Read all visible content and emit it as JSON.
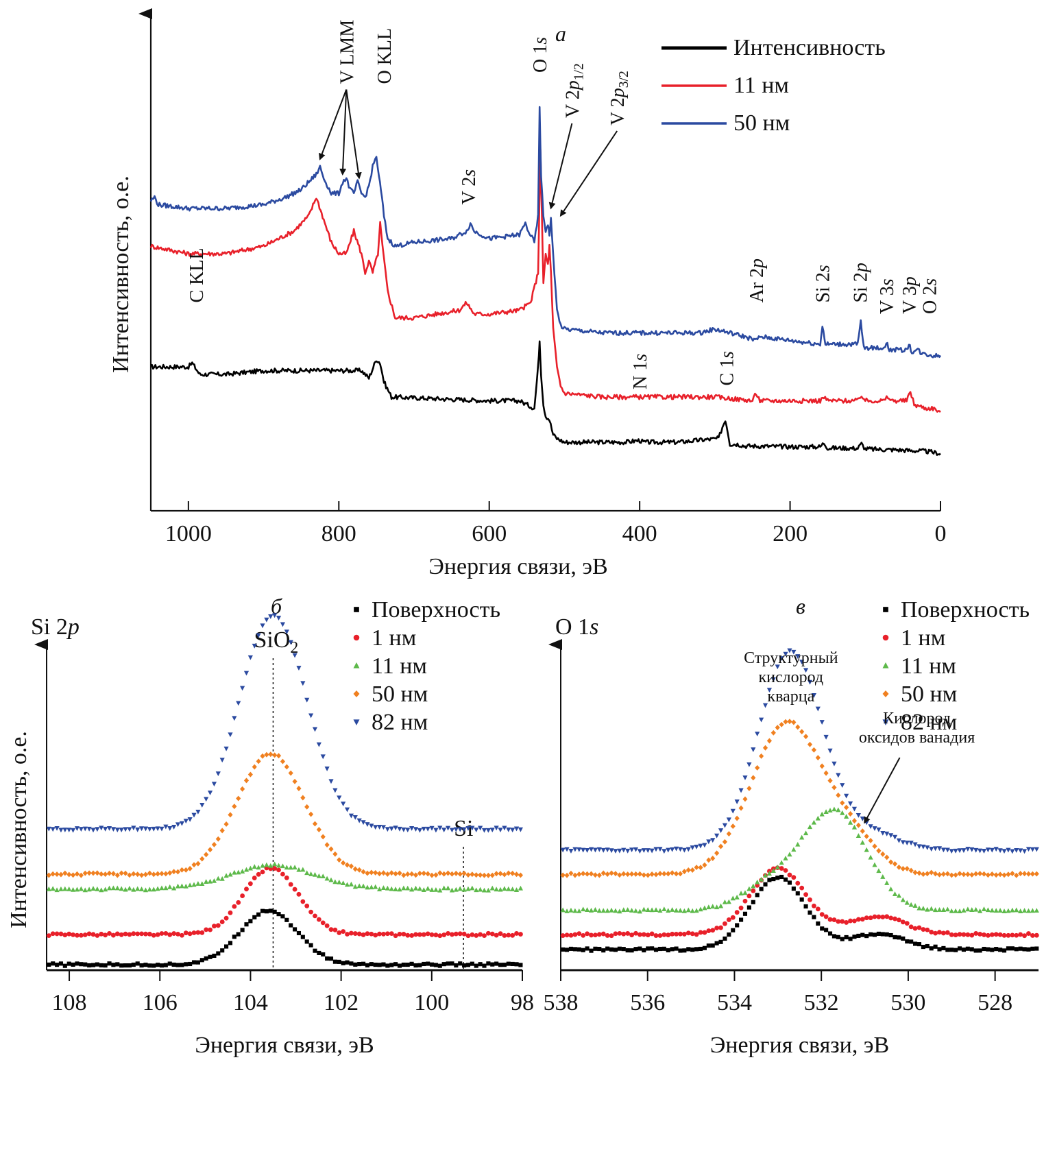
{
  "chart_data": [
    {
      "id": "a",
      "panel_letter": "а",
      "type": "line",
      "title": "",
      "xlabel": "Энергия связи, эВ",
      "ylabel": "Интенсивность, о.е.",
      "xlim": [
        1050,
        0
      ],
      "x_reversed": true,
      "xticks": [
        1000,
        800,
        600,
        400,
        200,
        0
      ],
      "yticks": [],
      "grid": false,
      "legend_position": "top-right",
      "series": [
        {
          "name": "Интенсивность",
          "color": "#000000",
          "offset": 0.0,
          "x": [
            1050,
            1000,
            995,
            985,
            950,
            900,
            860,
            770,
            760,
            750,
            745,
            740,
            730,
            600,
            560,
            540,
            535,
            533,
            531,
            528,
            525,
            520,
            515,
            510,
            500,
            420,
            400,
            395,
            350,
            295,
            290,
            286,
            283,
            280,
            270,
            260,
            250,
            200,
            160,
            155,
            150,
            110,
            105,
            100,
            60,
            40,
            20,
            0
          ],
          "y": [
            0.3,
            0.3,
            0.31,
            0.28,
            0.28,
            0.29,
            0.29,
            0.29,
            0.27,
            0.32,
            0.31,
            0.26,
            0.22,
            0.21,
            0.21,
            0.19,
            0.3,
            0.37,
            0.28,
            0.2,
            0.17,
            0.16,
            0.12,
            0.11,
            0.1,
            0.1,
            0.105,
            0.1,
            0.1,
            0.11,
            0.14,
            0.16,
            0.13,
            0.095,
            0.095,
            0.09,
            0.09,
            0.088,
            0.088,
            0.098,
            0.085,
            0.084,
            0.096,
            0.082,
            0.08,
            0.078,
            0.076,
            0.07
          ]
        },
        {
          "name": "11 нм",
          "color": "#e8202a",
          "offset": 0.0,
          "x": [
            1050,
            1000,
            950,
            900,
            860,
            840,
            830,
            820,
            810,
            800,
            790,
            780,
            770,
            765,
            760,
            755,
            748,
            745,
            742,
            735,
            725,
            700,
            640,
            630,
            620,
            600,
            560,
            545,
            535,
            532,
            530,
            528,
            525,
            522,
            520,
            518,
            515,
            510,
            505,
            500,
            450,
            300,
            250,
            245,
            240,
            160,
            155,
            150,
            110,
            105,
            100,
            75,
            70,
            65,
            45,
            40,
            35,
            20,
            10,
            0
          ],
          "y": [
            0.62,
            0.6,
            0.6,
            0.62,
            0.66,
            0.7,
            0.75,
            0.69,
            0.63,
            0.6,
            0.6,
            0.66,
            0.6,
            0.55,
            0.58,
            0.55,
            0.6,
            0.68,
            0.62,
            0.5,
            0.43,
            0.43,
            0.45,
            0.47,
            0.44,
            0.44,
            0.45,
            0.47,
            0.55,
            0.88,
            0.7,
            0.52,
            0.6,
            0.57,
            0.62,
            0.55,
            0.4,
            0.3,
            0.25,
            0.23,
            0.22,
            0.22,
            0.21,
            0.23,
            0.21,
            0.21,
            0.22,
            0.21,
            0.21,
            0.225,
            0.21,
            0.21,
            0.22,
            0.21,
            0.21,
            0.235,
            0.2,
            0.19,
            0.19,
            0.18
          ]
        },
        {
          "name": "50 нм",
          "color": "#2b4aa0",
          "offset": 0.0,
          "x": [
            1050,
            1045,
            1040,
            1000,
            950,
            900,
            870,
            850,
            840,
            830,
            825,
            820,
            810,
            800,
            795,
            790,
            785,
            780,
            775,
            770,
            765,
            760,
            755,
            750,
            748,
            744,
            740,
            735,
            725,
            700,
            650,
            630,
            625,
            620,
            600,
            560,
            552,
            548,
            540,
            535,
            533,
            531,
            528,
            525,
            522,
            520,
            518,
            515,
            510,
            505,
            500,
            450,
            320,
            300,
            260,
            245,
            240,
            200,
            160,
            157,
            153,
            110,
            106,
            102,
            75,
            72,
            68,
            45,
            42,
            38,
            30,
            25,
            10,
            0
          ],
          "y": [
            0.74,
            0.75,
            0.73,
            0.72,
            0.72,
            0.73,
            0.75,
            0.77,
            0.79,
            0.81,
            0.83,
            0.8,
            0.76,
            0.76,
            0.79,
            0.8,
            0.77,
            0.76,
            0.79,
            0.76,
            0.75,
            0.78,
            0.83,
            0.86,
            0.82,
            0.77,
            0.7,
            0.64,
            0.62,
            0.63,
            0.64,
            0.66,
            0.68,
            0.66,
            0.64,
            0.65,
            0.68,
            0.66,
            0.63,
            0.7,
            0.99,
            0.8,
            0.7,
            0.66,
            0.68,
            0.65,
            0.69,
            0.6,
            0.45,
            0.41,
            0.4,
            0.39,
            0.39,
            0.4,
            0.38,
            0.37,
            0.38,
            0.37,
            0.36,
            0.41,
            0.36,
            0.36,
            0.42,
            0.35,
            0.35,
            0.365,
            0.345,
            0.345,
            0.36,
            0.34,
            0.345,
            0.335,
            0.33,
            0.33
          ]
        }
      ],
      "legend": [
        {
          "label": "Интенсивность",
          "color": "#000000"
        },
        {
          "label": "11 нм",
          "color": "#e8202a"
        },
        {
          "label": "50 нм",
          "color": "#2b4aa0"
        }
      ],
      "annotations": [
        {
          "text": "V LMM",
          "x": 790,
          "y": 1.05,
          "arrows_to": [
            [
              825,
              0.84
            ],
            [
              795,
              0.8
            ],
            [
              773,
              0.79
            ]
          ]
        },
        {
          "text": "O KLL",
          "x": 740,
          "y": 1.05
        },
        {
          "text": "V 2s",
          "x": 628,
          "y": 0.73
        },
        {
          "text": "O 1s",
          "x": 533,
          "y": 1.08
        },
        {
          "text": "V 2p1/2",
          "x": 490,
          "y": 0.96,
          "arrows_to": [
            [
              518,
              0.71
            ]
          ]
        },
        {
          "text": "V 2p3/2",
          "x": 430,
          "y": 0.94,
          "arrows_to": [
            [
              505,
              0.69
            ]
          ]
        },
        {
          "text": "Ar 2p",
          "x": 245,
          "y": 0.47
        },
        {
          "text": "Si 2s",
          "x": 157,
          "y": 0.47
        },
        {
          "text": "Si 2p",
          "x": 107,
          "y": 0.47
        },
        {
          "text": "V 3s",
          "x": 72,
          "y": 0.44
        },
        {
          "text": "V 3p",
          "x": 42,
          "y": 0.44
        },
        {
          "text": "O 2s",
          "x": 15,
          "y": 0.44
        },
        {
          "text": "C KLL",
          "x": 990,
          "y": 0.47
        },
        {
          "text": "N 1s",
          "x": 400,
          "y": 0.24
        },
        {
          "text": "C 1s",
          "x": 285,
          "y": 0.25
        }
      ]
    },
    {
      "id": "b",
      "panel_letter": "б",
      "type": "scatter",
      "title": "Si 2p",
      "xlabel": "Энергия связи, эВ",
      "ylabel": "Интенсивность, о.е.",
      "xlim": [
        108.5,
        98
      ],
      "x_reversed": true,
      "xticks": [
        108,
        106,
        104,
        102,
        100,
        98
      ],
      "grid": false,
      "legend_position": "top-right",
      "reference_lines": [
        {
          "label": "SiO2",
          "x": 103.5
        },
        {
          "label": "Si",
          "x": 99.3
        }
      ],
      "series": [
        {
          "name": "Поверхность",
          "color": "#000000",
          "marker": "square",
          "baseline": 0.0,
          "peak_x": 103.6,
          "peak_height": 0.18,
          "width": 0.9
        },
        {
          "name": "1 нм",
          "color": "#e8202a",
          "marker": "circle",
          "baseline": 0.1,
          "peak_x": 103.55,
          "peak_height": 0.22,
          "width": 0.85
        },
        {
          "name": "11 нм",
          "color": "#5db94a",
          "marker": "triangle-up",
          "baseline": 0.25,
          "peak_x": 103.5,
          "peak_height": 0.08,
          "width": 1.3
        },
        {
          "name": "50 нм",
          "color": "#f08020",
          "marker": "diamond",
          "baseline": 0.3,
          "peak_x": 103.55,
          "peak_height": 0.4,
          "width": 1.05
        },
        {
          "name": "82 нм",
          "color": "#2b4aa0",
          "marker": "triangle-down",
          "baseline": 0.45,
          "peak_x": 103.5,
          "peak_height": 0.71,
          "width": 1.05
        }
      ]
    },
    {
      "id": "c",
      "panel_letter": "в",
      "type": "scatter",
      "title": "O 1s",
      "xlabel": "Энергия связи, эВ",
      "ylabel": "",
      "xlim": [
        538,
        527
      ],
      "x_reversed": true,
      "xticks": [
        538,
        536,
        534,
        532,
        530,
        528
      ],
      "grid": false,
      "legend_position": "top-right",
      "annotations": [
        {
          "text": "Структурный кислород кварца",
          "x": 532.7,
          "y": 1.0
        },
        {
          "text": "Кислород оксидов ванадия",
          "x": 529.8,
          "y": 0.8,
          "arrows_to": [
            [
              531.1,
              0.48
            ]
          ]
        }
      ],
      "series": [
        {
          "name": "Поверхность",
          "color": "#000000",
          "marker": "square",
          "baseline": 0.05,
          "peak_x": 533.0,
          "peak_height": 0.24,
          "width": 0.9,
          "shoulder_x": 530.7,
          "shoulder_height": 0.05
        },
        {
          "name": "1 нм",
          "color": "#e8202a",
          "marker": "circle",
          "baseline": 0.1,
          "peak_x": 533.0,
          "peak_height": 0.22,
          "width": 0.9,
          "shoulder_x": 530.7,
          "shoulder_height": 0.06
        },
        {
          "name": "11 нм",
          "color": "#5db94a",
          "marker": "triangle-up",
          "baseline": 0.18,
          "peak_x": 531.7,
          "peak_height": 0.33,
          "width": 1.05,
          "shoulder_x": 533.2,
          "shoulder_height": 0.08
        },
        {
          "name": "50 нм",
          "color": "#f08020",
          "marker": "diamond",
          "baseline": 0.3,
          "peak_x": 532.8,
          "peak_height": 0.5,
          "width": 1.15,
          "shoulder_x": 531.3,
          "shoulder_height": 0.1
        },
        {
          "name": "82 нм",
          "color": "#2b4aa0",
          "marker": "triangle-down",
          "baseline": 0.38,
          "peak_x": 532.7,
          "peak_height": 0.66,
          "width": 1.05,
          "shoulder_x": 530.8,
          "shoulder_height": 0.05
        }
      ]
    }
  ]
}
